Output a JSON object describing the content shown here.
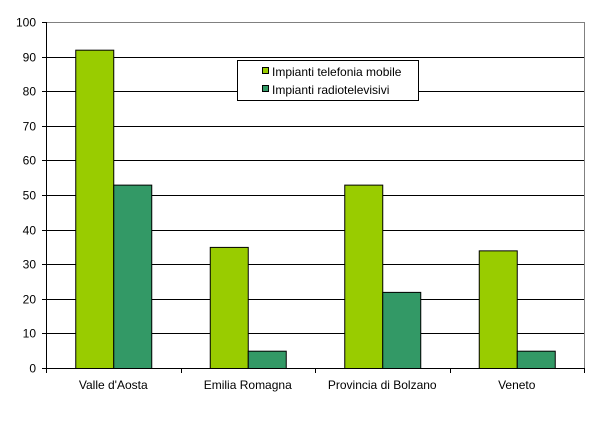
{
  "chart_data": {
    "type": "bar",
    "title": "",
    "xlabel": "",
    "ylabel": "",
    "ylim": [
      0,
      100
    ],
    "yticks": [
      0,
      10,
      20,
      30,
      40,
      50,
      60,
      70,
      80,
      90,
      100
    ],
    "grid": true,
    "legend_position": "top-center-inside",
    "categories": [
      "Valle d'Aosta",
      "Emilia Romagna",
      "Provincia di Bolzano",
      "Veneto"
    ],
    "series": [
      {
        "name": "Impianti telefonia mobile",
        "color": "#99CC00",
        "values": [
          92,
          35,
          53,
          34
        ]
      },
      {
        "name": "Impianti radiotelevisivi",
        "color": "#339966",
        "values": [
          53,
          5,
          22,
          5
        ]
      }
    ]
  }
}
